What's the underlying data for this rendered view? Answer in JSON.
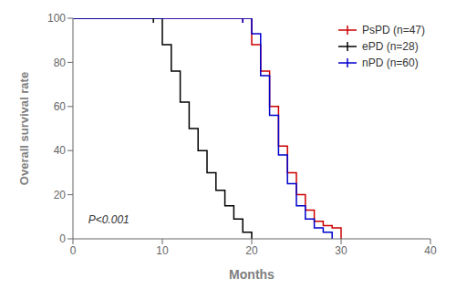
{
  "chart_data": {
    "type": "line",
    "line_style": "step",
    "marker": "|",
    "xlabel": "Months",
    "ylabel": "Overall survival rate",
    "xlim": [
      0,
      40
    ],
    "ylim": [
      0,
      100
    ],
    "xticks": [
      0,
      10,
      20,
      30,
      40
    ],
    "yticks": [
      0,
      20,
      40,
      60,
      80,
      100
    ],
    "grid": false,
    "legend": "upper right",
    "annotations": [
      {
        "text": "P<0.001",
        "x": 1.5,
        "y": 7
      }
    ],
    "series": [
      {
        "name": "PsPD (n=47)",
        "color": "#cc0000",
        "x": [
          0,
          19,
          20,
          21,
          22,
          23,
          24,
          25,
          26,
          27,
          28,
          29,
          30
        ],
        "values": [
          100,
          100,
          88,
          76,
          60,
          42,
          30,
          20,
          13,
          8,
          6,
          5,
          0
        ],
        "censor": [
          {
            "x": 19,
            "y": 100
          }
        ]
      },
      {
        "name": "ePD (n=28)",
        "color": "#000000",
        "x": [
          0,
          9,
          10,
          11,
          12,
          13,
          14,
          15,
          16,
          17,
          18,
          19,
          20
        ],
        "values": [
          100,
          100,
          88,
          76,
          62,
          50,
          40,
          30,
          22,
          15,
          9,
          3,
          0
        ],
        "censor": [
          {
            "x": 9,
            "y": 100
          }
        ]
      },
      {
        "name": "nPD (n=60)",
        "color": "#0000cc",
        "x": [
          0,
          19,
          20,
          21,
          22,
          23,
          24,
          25,
          26,
          27,
          28,
          29
        ],
        "values": [
          100,
          100,
          93,
          74,
          56,
          38,
          25,
          15,
          9,
          5,
          3,
          0
        ],
        "censor": [
          {
            "x": 19,
            "y": 100
          }
        ]
      }
    ]
  }
}
